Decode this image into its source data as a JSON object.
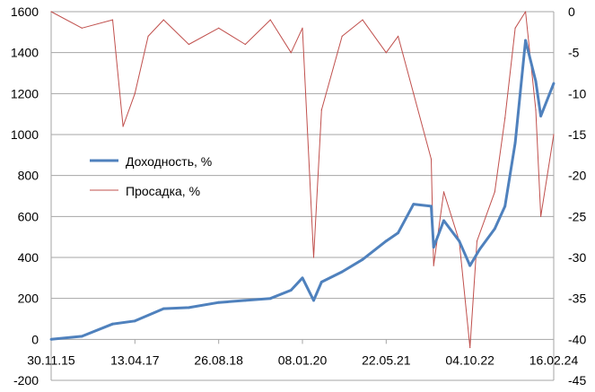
{
  "chart_data": {
    "type": "line",
    "title": "",
    "xlabel": "",
    "ylabel": "",
    "ylabel_right": "",
    "x_tick_labels": [
      "30.11.15",
      "13.04.17",
      "26.08.18",
      "08.01.20",
      "22.05.21",
      "04.10.22",
      "16.02.24"
    ],
    "ylim": [
      -200,
      1600
    ],
    "yticks": [
      -200,
      0,
      200,
      400,
      600,
      800,
      1000,
      1200,
      1400,
      1600
    ],
    "y2lim": [
      -45,
      0
    ],
    "y2ticks": [
      -45,
      -40,
      -35,
      -30,
      -25,
      -20,
      -15,
      -10,
      -5,
      0
    ],
    "grid": "horizontal",
    "legend_position": "center-left",
    "series": [
      {
        "name": "Доходность, %",
        "axis": "left",
        "color": "#4F81BD",
        "x": [
          "30.11.15",
          "01.06.16",
          "01.12.16",
          "13.04.17",
          "01.10.17",
          "01.03.18",
          "26.08.18",
          "01.02.19",
          "01.07.19",
          "01.11.19",
          "08.01.20",
          "15.03.20",
          "01.05.20",
          "01.09.20",
          "01.01.21",
          "22.05.21",
          "01.08.21",
          "01.11.21",
          "15.02.22",
          "01.03.22",
          "01.05.22",
          "01.08.22",
          "04.10.22",
          "01.12.22",
          "01.03.23",
          "01.05.23",
          "01.07.23",
          "01.09.23",
          "01.11.23",
          "01.12.23",
          "16.02.24"
        ],
        "values": [
          0,
          15,
          75,
          90,
          150,
          155,
          180,
          190,
          200,
          240,
          300,
          190,
          280,
          330,
          390,
          480,
          520,
          660,
          650,
          450,
          580,
          480,
          360,
          440,
          540,
          650,
          960,
          1460,
          1260,
          1090,
          1250
        ]
      },
      {
        "name": "Просадка, %",
        "axis": "right",
        "color": "#C0504D",
        "x": [
          "30.11.15",
          "01.06.16",
          "01.12.16",
          "01.02.17",
          "13.04.17",
          "01.07.17",
          "01.10.17",
          "01.03.18",
          "26.08.18",
          "01.02.19",
          "01.07.19",
          "01.11.19",
          "08.01.20",
          "15.03.20",
          "01.05.20",
          "01.09.20",
          "01.01.21",
          "22.05.21",
          "01.08.21",
          "01.11.21",
          "15.02.22",
          "01.03.22",
          "01.05.22",
          "01.08.22",
          "04.10.22",
          "15.11.22",
          "01.03.23",
          "01.05.23",
          "01.07.23",
          "01.09.23",
          "01.11.23",
          "01.12.23",
          "16.02.24"
        ],
        "values": [
          0,
          -2,
          -1,
          -14,
          -10,
          -3,
          -1,
          -4,
          -2,
          -4,
          -1,
          -5,
          -2,
          -30,
          -12,
          -3,
          -1,
          -5,
          -3,
          -10,
          -18,
          -31,
          -22,
          -28,
          -41,
          -28,
          -22,
          -13,
          -2,
          0,
          -12,
          -25,
          -15
        ]
      }
    ]
  }
}
